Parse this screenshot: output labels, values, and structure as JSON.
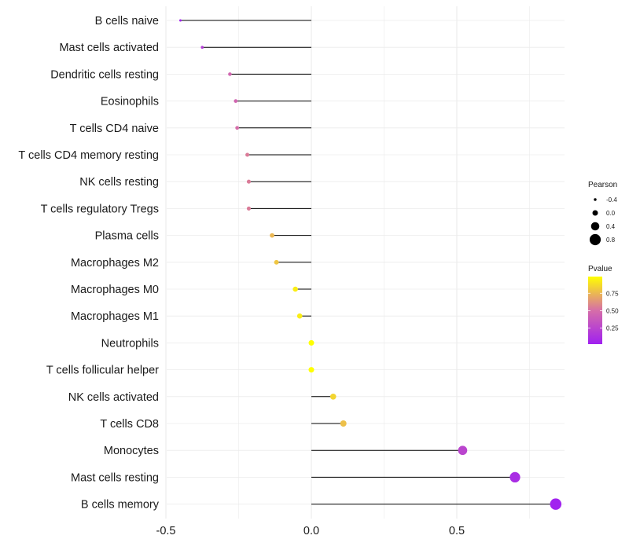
{
  "chart_data": {
    "type": "lollipop",
    "categories": [
      "B cells naive",
      "Mast cells activated",
      "Dendritic cells resting",
      "Eosinophils",
      "T cells CD4 naive",
      "T cells CD4 memory resting",
      "NK cells resting",
      "T cells regulatory  Tregs ",
      "Plasma cells",
      "Macrophages M2",
      "Macrophages M0",
      "Macrophages M1",
      "Neutrophils",
      "T cells follicular helper",
      "NK cells activated",
      "T cells CD8",
      "Monocytes",
      "Mast cells resting",
      "B cells memory"
    ],
    "pearson": [
      -0.45,
      -0.375,
      -0.28,
      -0.26,
      -0.255,
      -0.22,
      -0.215,
      -0.215,
      -0.135,
      -0.12,
      -0.055,
      -0.04,
      0.0,
      0.0,
      0.075,
      0.11,
      0.52,
      0.7,
      0.84
    ],
    "pvalue": [
      0.02,
      0.2,
      0.45,
      0.45,
      0.5,
      0.55,
      0.55,
      0.55,
      0.75,
      0.8,
      0.93,
      0.93,
      0.99,
      0.99,
      0.85,
      0.78,
      0.25,
      0.1,
      0.03
    ],
    "x_ticks": [
      "-0.5",
      "0.0",
      "0.5"
    ],
    "x_tick_values": [
      -0.5,
      0.0,
      0.5
    ],
    "xlim": [
      -0.5,
      0.85
    ],
    "xlabel": "",
    "ylabel": "",
    "grid": true,
    "legend_size": {
      "title": "Pearson",
      "labels": [
        "-0.4",
        "0.0",
        "0.4",
        "0.8"
      ],
      "values": [
        -0.4,
        0.0,
        0.4,
        0.8
      ]
    },
    "legend_color": {
      "title": "Pvalue",
      "labels": [
        "0.75",
        "0.50",
        "0.25"
      ],
      "values": [
        0.75,
        0.5,
        0.25
      ],
      "range": [
        0.02,
        0.99
      ],
      "low_color": "#a020f0",
      "high_color": "#ffff00"
    },
    "segment_color": "#000000",
    "grid_color": "#ebebeb"
  }
}
